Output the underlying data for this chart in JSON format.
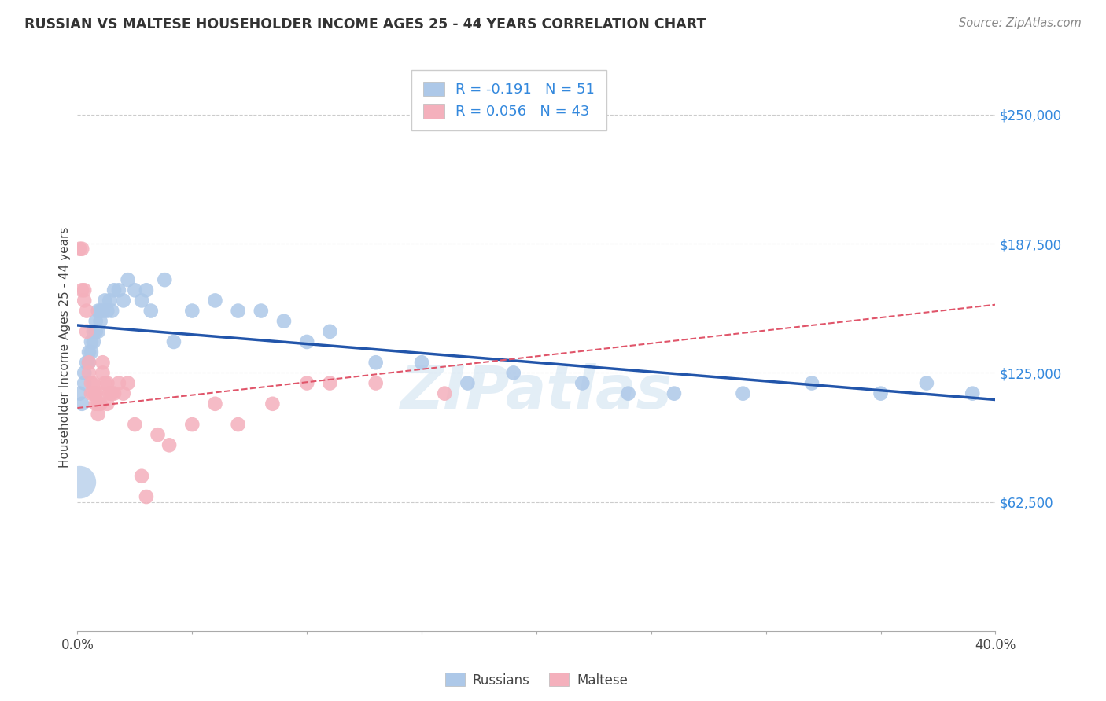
{
  "title": "RUSSIAN VS MALTESE HOUSEHOLDER INCOME AGES 25 - 44 YEARS CORRELATION CHART",
  "source": "Source: ZipAtlas.com",
  "ylabel": "Householder Income Ages 25 - 44 years",
  "y_tick_labels": [
    "$62,500",
    "$125,000",
    "$187,500",
    "$250,000"
  ],
  "y_tick_values": [
    62500,
    125000,
    187500,
    250000
  ],
  "y_min": 0,
  "y_max": 275000,
  "x_min": 0.0,
  "x_max": 0.4,
  "background_color": "#ffffff",
  "grid_color": "#cccccc",
  "watermark": "ZIPatlas",
  "russian_color": "#adc8e8",
  "maltese_color": "#f4b0bc",
  "russian_line_color": "#2255aa",
  "maltese_line_color": "#e0556a",
  "right_label_color": "#3388dd",
  "russian_r": "-0.191",
  "russian_n": "51",
  "maltese_r": "0.056",
  "maltese_n": "43",
  "russians_x": [
    0.001,
    0.002,
    0.003,
    0.003,
    0.004,
    0.005,
    0.005,
    0.006,
    0.006,
    0.007,
    0.007,
    0.008,
    0.008,
    0.009,
    0.009,
    0.01,
    0.01,
    0.011,
    0.012,
    0.013,
    0.014,
    0.015,
    0.016,
    0.018,
    0.02,
    0.022,
    0.025,
    0.028,
    0.03,
    0.032,
    0.038,
    0.042,
    0.05,
    0.06,
    0.07,
    0.08,
    0.09,
    0.1,
    0.11,
    0.13,
    0.15,
    0.17,
    0.19,
    0.22,
    0.24,
    0.26,
    0.29,
    0.32,
    0.35,
    0.37,
    0.39
  ],
  "russians_y": [
    115000,
    110000,
    120000,
    125000,
    130000,
    130000,
    135000,
    140000,
    135000,
    145000,
    140000,
    150000,
    145000,
    145000,
    155000,
    150000,
    155000,
    155000,
    160000,
    155000,
    160000,
    155000,
    165000,
    165000,
    160000,
    170000,
    165000,
    160000,
    165000,
    155000,
    170000,
    140000,
    155000,
    160000,
    155000,
    155000,
    150000,
    140000,
    145000,
    130000,
    130000,
    120000,
    125000,
    120000,
    115000,
    115000,
    115000,
    120000,
    115000,
    120000,
    115000
  ],
  "russians_y_extra": [
    75000
  ],
  "russians_x_extra": [
    0.001
  ],
  "maltese_x": [
    0.001,
    0.002,
    0.002,
    0.003,
    0.003,
    0.004,
    0.004,
    0.005,
    0.005,
    0.006,
    0.006,
    0.007,
    0.007,
    0.008,
    0.008,
    0.009,
    0.009,
    0.01,
    0.01,
    0.011,
    0.011,
    0.012,
    0.013,
    0.013,
    0.014,
    0.015,
    0.016,
    0.018,
    0.02,
    0.022,
    0.025,
    0.028,
    0.03,
    0.035,
    0.04,
    0.05,
    0.06,
    0.07,
    0.085,
    0.1,
    0.11,
    0.13,
    0.16
  ],
  "maltese_y": [
    185000,
    185000,
    165000,
    165000,
    160000,
    155000,
    145000,
    125000,
    130000,
    120000,
    115000,
    120000,
    115000,
    115000,
    110000,
    105000,
    110000,
    115000,
    110000,
    130000,
    125000,
    120000,
    120000,
    110000,
    115000,
    115000,
    115000,
    120000,
    115000,
    120000,
    100000,
    75000,
    65000,
    95000,
    90000,
    100000,
    110000,
    100000,
    110000,
    120000,
    120000,
    120000,
    115000
  ]
}
